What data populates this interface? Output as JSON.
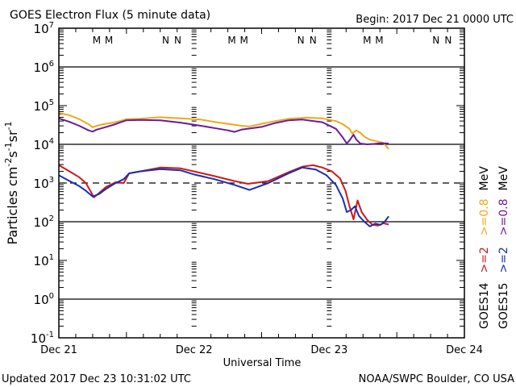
{
  "chart_data": {
    "type": "line",
    "title": "GOES Electron Flux (5 minute data)",
    "begin_label": "Begin: 2017 Dec 21 0000 UTC",
    "xlabel": "Universal Time",
    "ylabel": "Particles cm⁻²s⁻¹sr⁻¹",
    "ylabel_parts": {
      "base": "Particles cm",
      "e1": "-2",
      "s": "s",
      "e2": "-1",
      "sr": "sr",
      "e3": "-1"
    },
    "yscale": "log",
    "ylim": [
      0.1,
      10000000
    ],
    "y_ticks": [
      {
        "base": "10",
        "exp": "7"
      },
      {
        "base": "10",
        "exp": "6"
      },
      {
        "base": "10",
        "exp": "5"
      },
      {
        "base": "10",
        "exp": "4"
      },
      {
        "base": "10",
        "exp": "3"
      },
      {
        "base": "10",
        "exp": "2"
      },
      {
        "base": "10",
        "exp": "1"
      },
      {
        "base": "10",
        "exp": "0"
      },
      {
        "base": "10",
        "exp": "-1"
      }
    ],
    "xlim_days": [
      0,
      3
    ],
    "x_ticks": [
      "Dec 21",
      "Dec 22",
      "Dec 23",
      "Dec 24"
    ],
    "threshold_line": 1000,
    "day_markers": [
      {
        "label": "M",
        "color": "#1a2fb0",
        "t": 0.28
      },
      {
        "label": "M",
        "color": "#d01818",
        "t": 0.37
      },
      {
        "label": "N",
        "color": "#1a2fb0",
        "t": 0.79
      },
      {
        "label": "N",
        "color": "#d01818",
        "t": 0.88
      },
      {
        "label": "M",
        "color": "#1a2fb0",
        "t": 1.28
      },
      {
        "label": "M",
        "color": "#d01818",
        "t": 1.37
      },
      {
        "label": "N",
        "color": "#1a2fb0",
        "t": 1.79
      },
      {
        "label": "N",
        "color": "#d01818",
        "t": 1.88
      },
      {
        "label": "M",
        "color": "#1a2fb0",
        "t": 2.28
      },
      {
        "label": "M",
        "color": "#d01818",
        "t": 2.37
      },
      {
        "label": "N",
        "color": "#1a2fb0",
        "t": 2.79
      },
      {
        "label": "N",
        "color": "#d01818",
        "t": 2.88
      }
    ],
    "legend_position": "right",
    "legend": [
      {
        "sat": "GOES14",
        "e2": ">=2",
        "e08": ">=0.8",
        "unit": "MeV",
        "c2": "#d01818",
        "c08": "#f0a818"
      },
      {
        "sat": "GOES15",
        "e2": ">=2",
        "e08": ">=0.8",
        "unit": "MeV",
        "c2": "#1a2fb0",
        "c08": "#6a1aa0"
      }
    ],
    "series": [
      {
        "name": "GOES14 >=0.8 MeV",
        "color": "#f0a818",
        "t": [
          0.0,
          0.08,
          0.15,
          0.22,
          0.25,
          0.28,
          0.33,
          0.4,
          0.45,
          0.5,
          0.6,
          0.75,
          0.9,
          1.05,
          1.15,
          1.25,
          1.35,
          1.41,
          1.5,
          1.6,
          1.7,
          1.83,
          1.95,
          2.05,
          2.1,
          2.15,
          2.17,
          2.2,
          2.23,
          2.26,
          2.3,
          2.35,
          2.4,
          2.44
        ],
        "log10": [
          4.81,
          4.75,
          4.65,
          4.52,
          4.44,
          4.48,
          4.52,
          4.56,
          4.6,
          4.65,
          4.66,
          4.7,
          4.67,
          4.64,
          4.58,
          4.53,
          4.48,
          4.46,
          4.53,
          4.6,
          4.66,
          4.69,
          4.67,
          4.6,
          4.52,
          4.4,
          4.28,
          4.36,
          4.3,
          4.2,
          4.12,
          4.08,
          4.04,
          3.88
        ]
      },
      {
        "name": "GOES15 >=0.8 MeV",
        "color": "#6a1aa0",
        "t": [
          0.0,
          0.08,
          0.15,
          0.22,
          0.25,
          0.28,
          0.33,
          0.4,
          0.45,
          0.5,
          0.6,
          0.75,
          0.9,
          1.05,
          1.15,
          1.25,
          1.3,
          1.35,
          1.5,
          1.6,
          1.7,
          1.8,
          1.95,
          2.05,
          2.1,
          2.13,
          2.15,
          2.18,
          2.2,
          2.23,
          2.28,
          2.33,
          2.38,
          2.44
        ],
        "log10": [
          4.67,
          4.58,
          4.48,
          4.36,
          4.33,
          4.38,
          4.43,
          4.5,
          4.56,
          4.62,
          4.63,
          4.62,
          4.56,
          4.48,
          4.42,
          4.36,
          4.32,
          4.38,
          4.45,
          4.55,
          4.62,
          4.64,
          4.57,
          4.4,
          4.18,
          4.02,
          4.1,
          4.25,
          4.12,
          4.02,
          4.0,
          4.01,
          4.03,
          4.02
        ]
      },
      {
        "name": "GOES14 >=2 MeV",
        "color": "#d01818",
        "t": [
          0.0,
          0.08,
          0.15,
          0.2,
          0.26,
          0.3,
          0.35,
          0.42,
          0.48,
          0.52,
          0.6,
          0.75,
          0.9,
          1.0,
          1.15,
          1.3,
          1.4,
          1.55,
          1.7,
          1.8,
          1.88,
          1.95,
          2.02,
          2.08,
          2.12,
          2.15,
          2.18,
          2.21,
          2.24,
          2.28,
          2.32,
          2.36,
          2.4,
          2.44
        ],
        "log10": [
          3.46,
          3.3,
          3.15,
          3.0,
          2.63,
          2.75,
          2.9,
          3.02,
          3.0,
          3.25,
          3.3,
          3.4,
          3.38,
          3.3,
          3.18,
          3.05,
          2.98,
          3.05,
          3.28,
          3.42,
          3.46,
          3.4,
          3.3,
          3.12,
          2.8,
          2.4,
          2.06,
          2.55,
          2.25,
          2.05,
          1.92,
          1.9,
          1.96,
          1.93
        ]
      },
      {
        "name": "GOES15 >=2 MeV",
        "color": "#1a2fb0",
        "t": [
          0.0,
          0.08,
          0.15,
          0.2,
          0.25,
          0.3,
          0.35,
          0.42,
          0.48,
          0.52,
          0.6,
          0.75,
          0.9,
          1.0,
          1.15,
          1.3,
          1.41,
          1.55,
          1.7,
          1.8,
          1.9,
          1.98,
          2.05,
          2.1,
          2.13,
          2.16,
          2.19,
          2.22,
          2.26,
          2.3,
          2.34,
          2.38,
          2.41,
          2.44
        ],
        "log10": [
          3.2,
          3.05,
          2.92,
          2.8,
          2.65,
          2.72,
          2.85,
          3.0,
          3.1,
          3.25,
          3.3,
          3.36,
          3.33,
          3.22,
          3.1,
          2.95,
          2.82,
          3.0,
          3.25,
          3.4,
          3.35,
          3.2,
          2.95,
          2.6,
          2.25,
          2.3,
          2.4,
          2.15,
          2.0,
          1.88,
          1.95,
          1.92,
          2.0,
          2.14
        ]
      }
    ]
  },
  "footer": {
    "updated": "Updated 2017 Dec 23 10:31:02 UTC",
    "credit": "NOAA/SWPC Boulder, CO USA"
  }
}
